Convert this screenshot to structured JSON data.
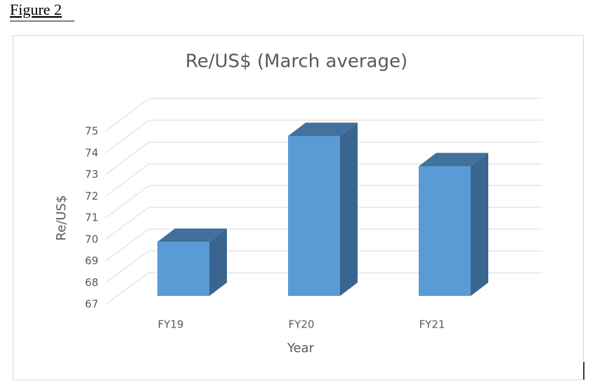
{
  "figure_label": "Figure 2",
  "chart_data": {
    "type": "bar3d",
    "title": "Re/US$ (March average)",
    "categories": [
      "FY19",
      "FY20",
      "FY21"
    ],
    "values": [
      69.5,
      74.4,
      73.0
    ],
    "color": "#5b9bd5",
    "x_label": "Year",
    "y_label": "Re/US$",
    "ylim": [
      67,
      75
    ],
    "yticks": [
      67,
      68,
      69,
      70,
      71,
      72,
      73,
      74,
      75
    ],
    "grid": true
  }
}
